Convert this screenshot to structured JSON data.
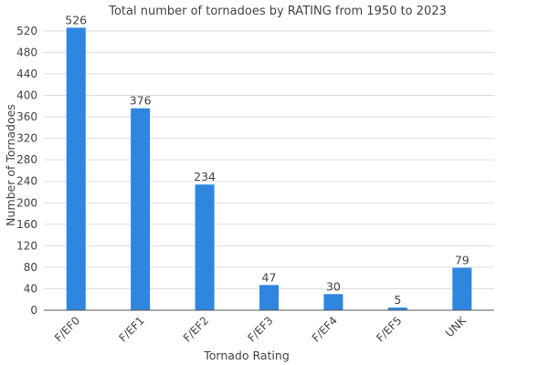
{
  "chart_data": {
    "type": "bar",
    "title": "Total number of tornadoes by RATING from 1950 to 2023",
    "xlabel": "Tornado Rating",
    "ylabel": "Number of Tornadoes",
    "categories": [
      "F/EF0",
      "F/EF1",
      "F/EF2",
      "F/EF3",
      "F/EF4",
      "F/EF5",
      "UNK"
    ],
    "values": [
      526,
      376,
      234,
      47,
      30,
      5,
      79
    ],
    "ylim": [
      0,
      530
    ],
    "yticks": [
      0,
      40,
      80,
      120,
      160,
      200,
      240,
      280,
      320,
      360,
      400,
      440,
      480,
      520
    ],
    "grid": true,
    "legend": "none",
    "bar_color": "#2e86de"
  }
}
